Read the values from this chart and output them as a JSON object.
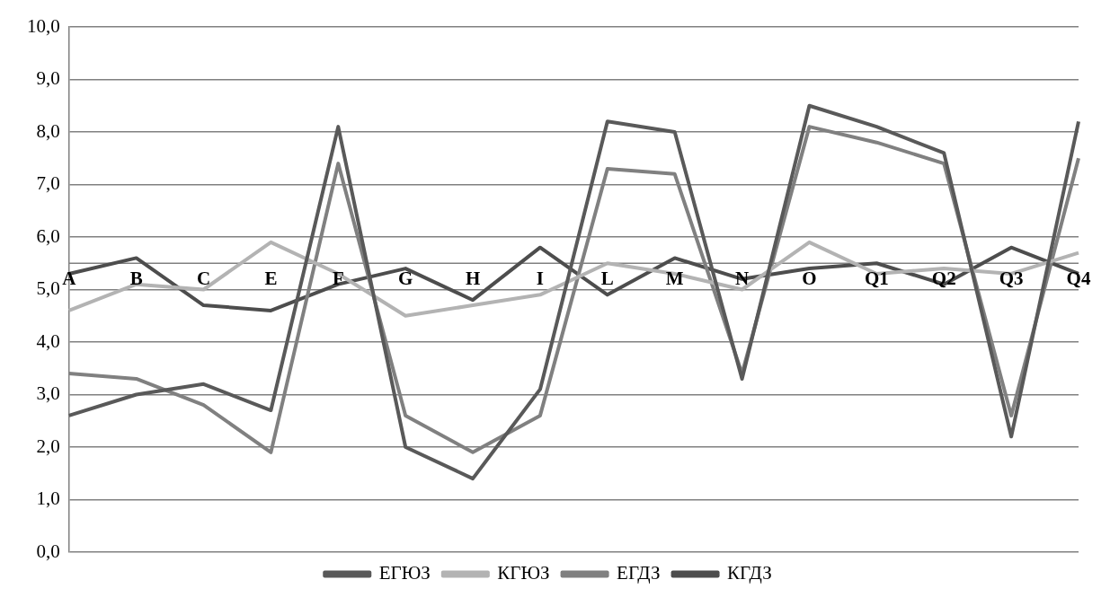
{
  "chart_data": {
    "type": "line",
    "categories": [
      "A",
      "B",
      "C",
      "E",
      "F",
      "G",
      "H",
      "I",
      "L",
      "M",
      "N",
      "O",
      "Q1",
      "Q2",
      "Q3",
      "Q4"
    ],
    "series": [
      {
        "name": "ЕГЮЗ",
        "color": "#595959",
        "values": [
          2.6,
          3.0,
          3.2,
          2.7,
          8.1,
          2.0,
          1.4,
          3.1,
          8.2,
          8.0,
          3.3,
          8.5,
          8.1,
          7.6,
          2.2,
          8.2
        ]
      },
      {
        "name": "КГЮЗ",
        "color": "#b3b3b3",
        "values": [
          4.6,
          5.1,
          5.0,
          5.9,
          5.3,
          4.5,
          4.7,
          4.9,
          5.5,
          5.3,
          5.0,
          5.9,
          5.3,
          5.4,
          5.3,
          5.7
        ]
      },
      {
        "name": "ЕГДЗ",
        "color": "#808080",
        "values": [
          3.4,
          3.3,
          2.8,
          1.9,
          7.4,
          2.6,
          1.9,
          2.6,
          7.3,
          7.2,
          3.4,
          8.1,
          7.8,
          7.4,
          2.6,
          7.5
        ]
      },
      {
        "name": "КГДЗ",
        "color": "#4d4d4d",
        "values": [
          5.3,
          5.6,
          4.7,
          4.6,
          5.1,
          5.4,
          4.8,
          5.8,
          4.9,
          5.6,
          5.2,
          5.4,
          5.5,
          5.1,
          5.8,
          5.3
        ]
      }
    ],
    "ylim": [
      0,
      10
    ],
    "yticks": [
      {
        "value": 0,
        "label": "0,0"
      },
      {
        "value": 1,
        "label": "1,0"
      },
      {
        "value": 2,
        "label": "2,0"
      },
      {
        "value": 3,
        "label": "3,0"
      },
      {
        "value": 4,
        "label": "4,0"
      },
      {
        "value": 5,
        "label": "5,0"
      },
      {
        "value": 6,
        "label": "6,0"
      },
      {
        "value": 7,
        "label": "7,0"
      },
      {
        "value": 8,
        "label": "8,0"
      },
      {
        "value": 9,
        "label": "9,0"
      },
      {
        "value": 10,
        "label": "10,0"
      }
    ],
    "ref_lines": [
      {
        "axis": "y",
        "value": 5.5,
        "color": "#808080"
      }
    ],
    "grid": "y",
    "legend": "bottom",
    "marker": "none",
    "line_style": "solid"
  }
}
